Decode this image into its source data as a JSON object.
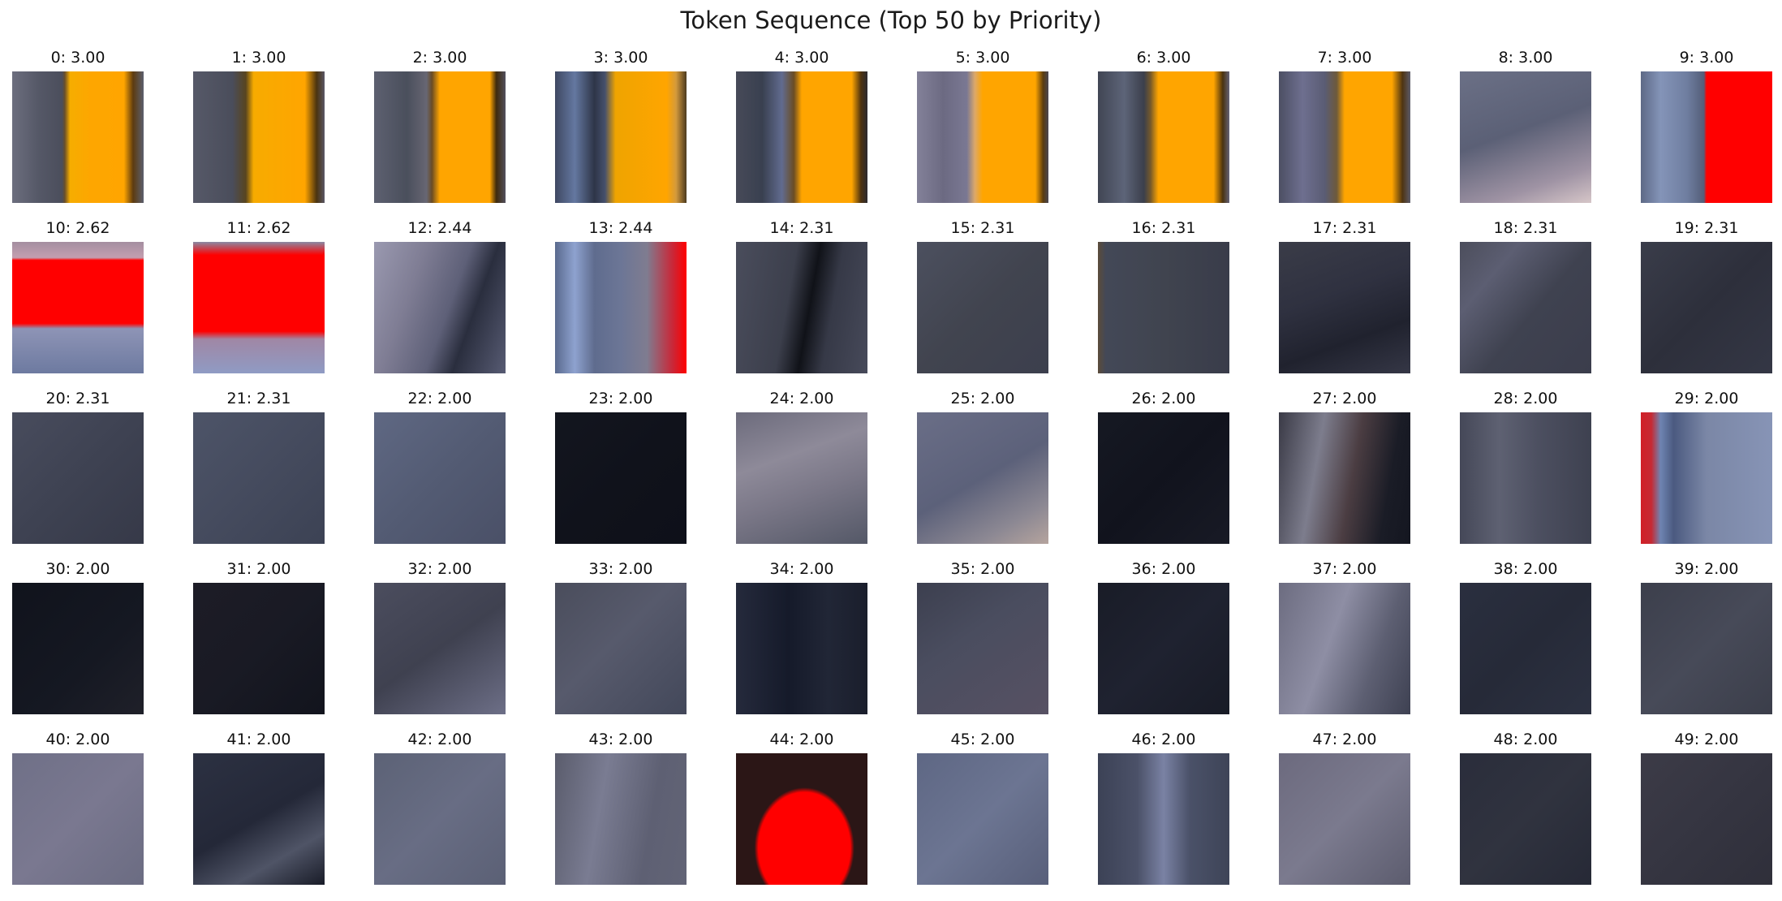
{
  "figure": {
    "title": "Token Sequence (Top 50 by Priority)"
  },
  "tokens": [
    {
      "index": 0,
      "label": "0: 3.00",
      "score": 3.0,
      "thumb": "linear-gradient(90deg,#6c6e7e 0%,#555867 20%,#4b4e5c 38%,#6a4f2a 40%,#f6ad00 44%,#fea600 60%,#ffa500 85%,#5d3b10 92%,#5c5f6e 100%)"
    },
    {
      "index": 1,
      "label": "1: 3.00",
      "score": 3.0,
      "thumb": "linear-gradient(90deg,#565968 0%,#4a4d5b 30%,#58451f 40%,#f7ab00 46%,#ffa500 85%,#4a3310 94%,#5a5766 100%)"
    },
    {
      "index": 2,
      "label": "2: 3.00",
      "score": 3.0,
      "thumb": "linear-gradient(90deg,#5d6070 0%,#4a4f5c 25%,#676673 40%,#6a4c24 44%,#ffa500 50%,#ffa500 88%,#3e2a0d 93%,#52505e 100%)"
    },
    {
      "index": 3,
      "label": "3: 3.00",
      "score": 3.0,
      "thumb": "linear-gradient(90deg,#3f4862 0%,#6478a0 15%,#2e3548 30%,#45506c 38%,#efa400 46%,#ffa500 85%,#d49a3c 92%,#4b3a1f 100%)"
    },
    {
      "index": 4,
      "label": "4: 3.00",
      "score": 3.0,
      "thumb": "linear-gradient(90deg,#474a58 0%,#394050 20%,#616b8f 35%,#6a4d24 44%,#ffa500 50%,#ffa500 88%,#4e3310 95%,#2b2a30 100%)"
    },
    {
      "index": 5,
      "label": "5: 3.00",
      "score": 3.0,
      "thumb": "linear-gradient(90deg,#838199 0%,#6c6a82 20%,#7a7893 38%,#dba86a 44%,#ffa500 50%,#ffa500 90%,#5a3c10 96%,#4a4752 100%)"
    },
    {
      "index": 6,
      "label": "6: 3.00",
      "score": 3.0,
      "thumb": "linear-gradient(90deg,#414654 0%,#5d6478 20%,#3b3f4c 35%,#75592a 40%,#ffa500 46%,#ffa500 88%,#4a3210 95%,#646276 100%)"
    },
    {
      "index": 7,
      "label": "7: 3.00",
      "score": 3.0,
      "thumb": "linear-gradient(90deg,#4c4f63 0%,#6e6f8f 18%,#5a5c74 35%,#6e5a3a 44%,#ffa500 50%,#ffa500 86%,#4e3412 94%,#5b5a68 100%)"
    },
    {
      "index": 8,
      "label": "8: 3.00",
      "score": 3.0,
      "thumb": "linear-gradient(160deg,#6b7086 0%,#5b6076 45%,#9f93a4 80%,#d6c6c8 100%)"
    },
    {
      "index": 9,
      "label": "9: 3.00",
      "score": 3.0,
      "thumb": "linear-gradient(90deg,#5d6986 0%,#8494b8 15%,#6f7ea0 35%,#545e79 48%,#ff0000 50%,#ff0000 100%)"
    },
    {
      "index": 10,
      "label": "10: 2.62",
      "score": 2.62,
      "thumb": "linear-gradient(180deg,#a48ea0 0%,#c39fb0 12%,#ff0000 14%,#ff0000 62%,#8e94b6 66%,#6d7aa0 100%)"
    },
    {
      "index": 11,
      "label": "11: 2.62",
      "score": 2.62,
      "thumb": "linear-gradient(180deg,#8a8aa4 0%,#ff0000 10%,#ff0000 68%,#a087a5 74%,#8f9bc4 100%)"
    },
    {
      "index": 12,
      "label": "12: 2.44",
      "score": 2.44,
      "thumb": "linear-gradient(110deg,#9a99b0 0%,#7f7d94 30%,#5e6078 55%,#2a2e3e 70%,#575b73 100%)"
    },
    {
      "index": 13,
      "label": "13: 2.44",
      "score": 2.44,
      "thumb": "linear-gradient(90deg,#5a6a8e 0%,#8ea2cf 15%,#5f6c8e 30%,#6c7696 50%,#7f7c90 70%,#cc2535 90%,#ff0000 100%)"
    },
    {
      "index": 14,
      "label": "14: 2.31",
      "score": 2.31,
      "thumb": "linear-gradient(100deg,#4a4d5c 0%,#3c3f4c 40%,#101218 55%,#363947 70%,#474a5a 100%)"
    },
    {
      "index": 15,
      "label": "15: 2.31",
      "score": 2.31,
      "thumb": "linear-gradient(135deg,#4c505f 0%,#41444f 50%,#3c3f4d 100%)"
    },
    {
      "index": 16,
      "label": "16: 2.31",
      "score": 2.31,
      "thumb": "linear-gradient(90deg,#5b4c3a 0%,#434857 6%,#40444f 50%,#393c4a 100%)"
    },
    {
      "index": 17,
      "label": "17: 2.31",
      "score": 2.31,
      "thumb": "linear-gradient(160deg,#3a3c48 0%,#2f3140 40%,#20222e 70%,#353746 100%)"
    },
    {
      "index": 18,
      "label": "18: 2.31",
      "score": 2.31,
      "thumb": "linear-gradient(130deg,#4c4e5c 0%,#5c5e72 25%,#3f4250 55%,#3b3d4c 100%)"
    },
    {
      "index": 19,
      "label": "19: 2.31",
      "score": 2.31,
      "thumb": "linear-gradient(135deg,#3a3d4a 0%,#2d2f3b 50%,#343745 100%)"
    },
    {
      "index": 20,
      "label": "20: 2.31",
      "score": 2.31,
      "thumb": "linear-gradient(135deg,#484c5d 0%,#3e4252 50%,#363948 100%)"
    },
    {
      "index": 21,
      "label": "21: 2.31",
      "score": 2.31,
      "thumb": "linear-gradient(135deg,#4d5468 0%,#454b5e 50%,#3c4254 100%)"
    },
    {
      "index": 22,
      "label": "22: 2.00",
      "score": 2.0,
      "thumb": "linear-gradient(135deg,#5f6883 0%,#535b73 50%,#4a5067 100%)"
    },
    {
      "index": 23,
      "label": "23: 2.00",
      "score": 2.0,
      "thumb": "linear-gradient(135deg,#13161f 0%,#10121b 50%,#0e1019 100%)"
    },
    {
      "index": 24,
      "label": "24: 2.00",
      "score": 2.0,
      "thumb": "linear-gradient(160deg,#6c6b7c 0%,#8e8a99 35%,#7a7787 60%,#545867 100%)"
    },
    {
      "index": 25,
      "label": "25: 2.00",
      "score": 2.0,
      "thumb": "linear-gradient(150deg,#6a6e87 0%,#5c617a 50%,#8c8893 80%,#b5a49e 100%)"
    },
    {
      "index": 26,
      "label": "26: 2.00",
      "score": 2.0,
      "thumb": "linear-gradient(135deg,#161923 0%,#11131d 50%,#181a25 100%)"
    },
    {
      "index": 27,
      "label": "27: 2.00",
      "score": 2.0,
      "thumb": "linear-gradient(100deg,#3a3a46 0%,#7d7d8d 30%,#4b3d42 55%,#1a1c26 80%,#141620 100%)"
    },
    {
      "index": 28,
      "label": "28: 2.00",
      "score": 2.0,
      "thumb": "linear-gradient(90deg,#454858 0%,#5e6172 30%,#4c4f60 60%,#3e4150 100%)"
    },
    {
      "index": 29,
      "label": "29: 2.00",
      "score": 2.0,
      "thumb": "linear-gradient(90deg,#d11f27 0%,#c62a33 8%,#6e84b2 15%,#4b5a80 25%,#7b87a6 50%,#8794b6 100%)"
    },
    {
      "index": 30,
      "label": "30: 2.00",
      "score": 2.0,
      "thumb": "linear-gradient(135deg,#10131c 0%,#151822 60%,#1f2029 100%)"
    },
    {
      "index": 31,
      "label": "31: 2.00",
      "score": 2.0,
      "thumb": "linear-gradient(135deg,#1d1c26 0%,#191a24 50%,#12141d 100%)"
    },
    {
      "index": 32,
      "label": "32: 2.00",
      "score": 2.0,
      "thumb": "linear-gradient(145deg,#4b4d5e 0%,#3f4150 50%,#6d6f87 100%)"
    },
    {
      "index": 33,
      "label": "33: 2.00",
      "score": 2.0,
      "thumb": "linear-gradient(135deg,#4a4d5c 0%,#575a6c 45%,#43485a 100%)"
    },
    {
      "index": 34,
      "label": "34: 2.00",
      "score": 2.0,
      "thumb": "linear-gradient(90deg,#252a3c 0%,#151a2a 40%,#212636 70%,#1a1e2c 100%)"
    },
    {
      "index": 35,
      "label": "35: 2.00",
      "score": 2.0,
      "thumb": "linear-gradient(145deg,#3c3f4f 0%,#4a4d5f 40%,#575163 100%)"
    },
    {
      "index": 36,
      "label": "36: 2.00",
      "score": 2.0,
      "thumb": "linear-gradient(135deg,#191c27 0%,#1f2230 50%,#181b26 100%)"
    },
    {
      "index": 37,
      "label": "37: 2.00",
      "score": 2.0,
      "thumb": "linear-gradient(110deg,#6c6c80 0%,#8e8ea4 40%,#5d5f72 70%,#3e4152 100%)"
    },
    {
      "index": 38,
      "label": "38: 2.00",
      "score": 2.0,
      "thumb": "linear-gradient(135deg,#2a2f3f 0%,#262a38 50%,#2c3141 100%)"
    },
    {
      "index": 39,
      "label": "39: 2.00",
      "score": 2.0,
      "thumb": "linear-gradient(135deg,#3c3f4c 0%,#474a58 50%,#3b3e4a 100%)"
    },
    {
      "index": 40,
      "label": "40: 2.00",
      "score": 2.0,
      "thumb": "linear-gradient(135deg,#6f7087 0%,#7a7890 50%,#6b6c82 100%)"
    },
    {
      "index": 41,
      "label": "41: 2.00",
      "score": 2.0,
      "thumb": "linear-gradient(150deg,#2c3142 0%,#242838 50%,#4f5466 75%,#191c28 100%)"
    },
    {
      "index": 42,
      "label": "42: 2.00",
      "score": 2.0,
      "thumb": "linear-gradient(135deg,#5c6276 0%,#686d84 50%,#5b6075 100%)"
    },
    {
      "index": 43,
      "label": "43: 2.00",
      "score": 2.0,
      "thumb": "linear-gradient(100deg,#5a5c6c 0%,#7a7c92 35%,#5e6073 70%,#626476 100%)"
    },
    {
      "index": 44,
      "label": "44: 2.00",
      "score": 2.0,
      "thumb": "radial-gradient(ellipse 38% 46% at 52% 72%,#ff0000 0%,#ff0000 92%,#2b1616 100%),linear-gradient(180deg,#1a1a22 0%,#0f3320 30%,#1a1a22 100%)"
    },
    {
      "index": 45,
      "label": "45: 2.00",
      "score": 2.0,
      "thumb": "linear-gradient(135deg,#5e6784 0%,#6c7592 50%,#585f7a 100%)"
    },
    {
      "index": 46,
      "label": "46: 2.00",
      "score": 2.0,
      "thumb": "linear-gradient(90deg,#3c4256 0%,#4b5168 30%,#7a82a4 50%,#4a5168 70%,#3e4457 100%)"
    },
    {
      "index": 47,
      "label": "47: 2.00",
      "score": 2.0,
      "thumb": "linear-gradient(135deg,#6c6a7e 0%,#7b7a8e 50%,#5c5c6e 100%)"
    },
    {
      "index": 48,
      "label": "48: 2.00",
      "score": 2.0,
      "thumb": "linear-gradient(135deg,#2a2d3b 0%,#30333f 50%,#262936 100%)"
    },
    {
      "index": 49,
      "label": "49: 2.00",
      "score": 2.0,
      "thumb": "linear-gradient(135deg,#3c3b47 0%,#353541 50%,#2f2f3a 100%)"
    }
  ]
}
